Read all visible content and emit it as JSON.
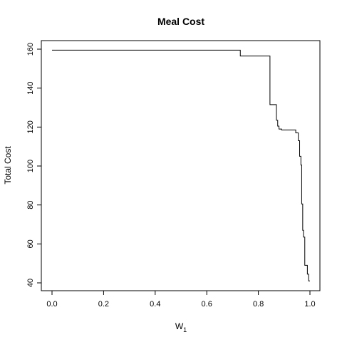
{
  "chart_data": {
    "type": "line",
    "step": true,
    "title": "Meal Cost",
    "xlabel": "W",
    "xlabel_subscript": "1",
    "ylabel": "Total Cost",
    "xlim": [
      0,
      1
    ],
    "ylim": [
      40,
      160
    ],
    "xticks": [
      0,
      0.2,
      0.4,
      0.6,
      0.8,
      1.0
    ],
    "xtick_labels": [
      "0.0",
      "0.2",
      "0.4",
      "0.6",
      "0.8",
      "1.0"
    ],
    "yticks": [
      40,
      60,
      80,
      100,
      120,
      140,
      160
    ],
    "ytick_labels": [
      "40",
      "60",
      "80",
      "100",
      "120",
      "140",
      "160"
    ],
    "grid": false,
    "series": [
      {
        "x": [
          0.0,
          0.73,
          0.73,
          0.845,
          0.845,
          0.87,
          0.87,
          0.875,
          0.875,
          0.88,
          0.88,
          0.89,
          0.89,
          0.945,
          0.945,
          0.955,
          0.955,
          0.96,
          0.96,
          0.965,
          0.965,
          0.968,
          0.968,
          0.972,
          0.972,
          0.975,
          0.975,
          0.98,
          0.98,
          0.99,
          0.99,
          0.995,
          0.995,
          1.0
        ],
        "y": [
          159.5,
          159.5,
          156.5,
          156.5,
          131.5,
          131.5,
          123.5,
          123.5,
          120.5,
          120.5,
          119.0,
          119.0,
          118.5,
          118.5,
          117.0,
          117.0,
          113.0,
          113.0,
          105.0,
          105.0,
          100.5,
          100.5,
          80.5,
          80.5,
          67.0,
          67.0,
          63.5,
          63.5,
          49.0,
          49.0,
          44.5,
          44.5,
          41.0,
          41.0
        ]
      }
    ]
  }
}
